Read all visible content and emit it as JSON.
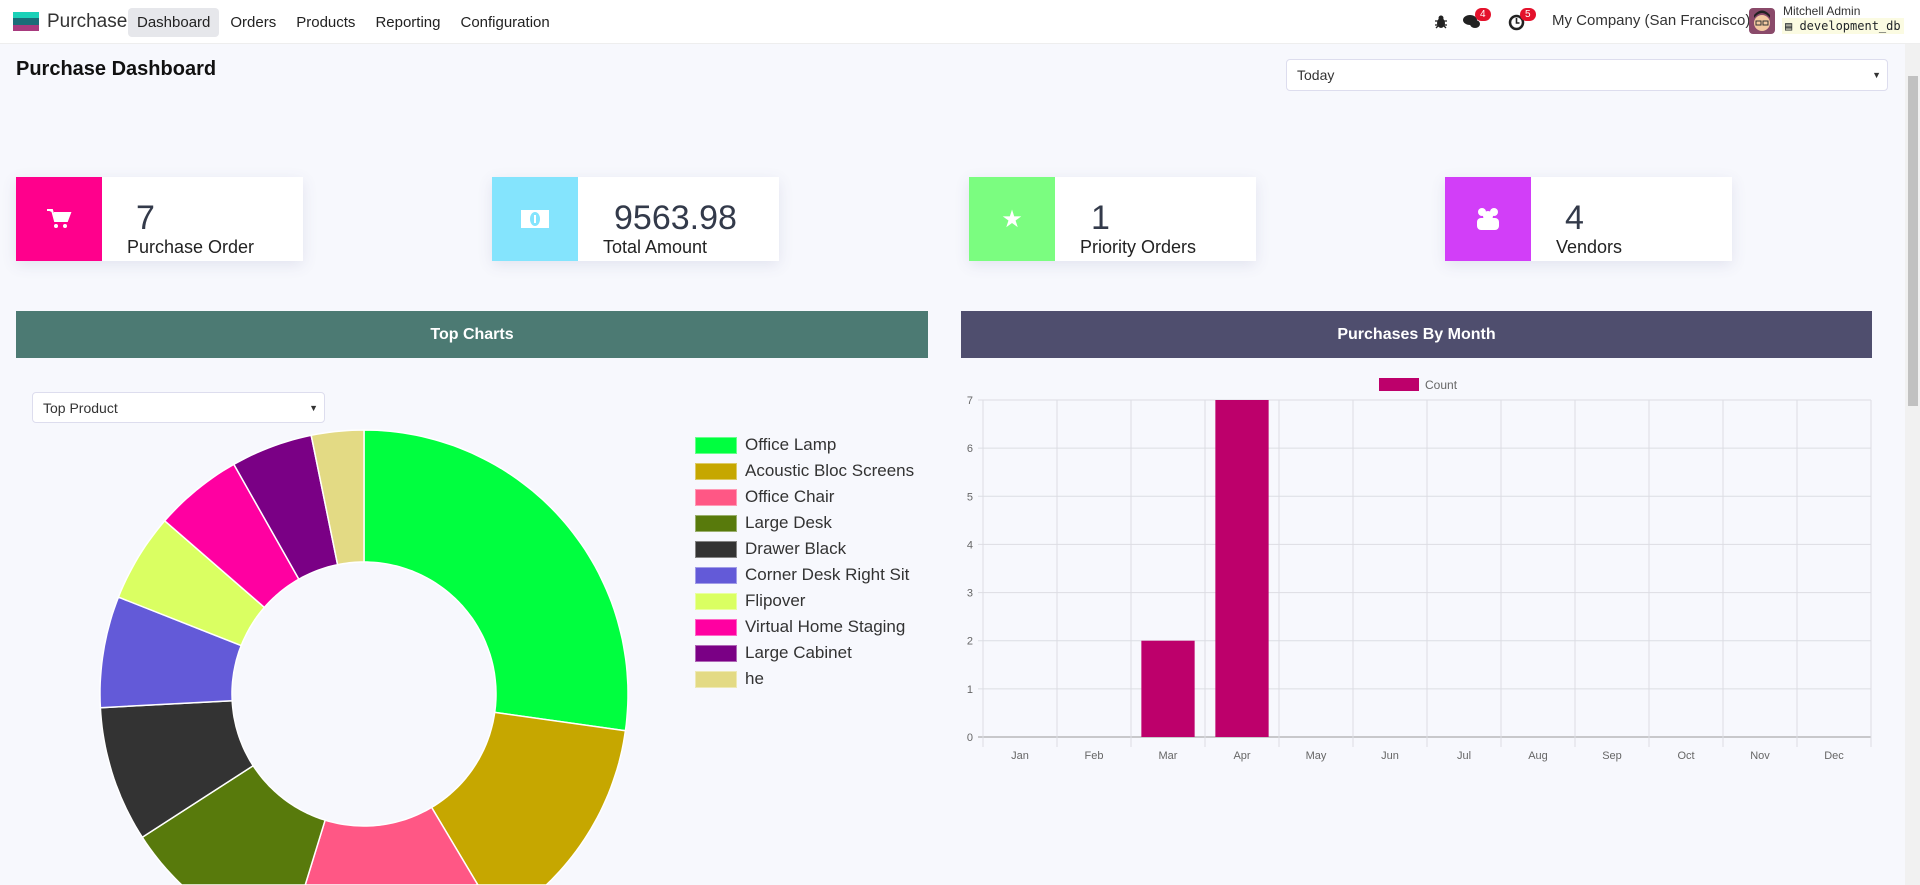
{
  "nav": {
    "app": "Purchase",
    "menu": [
      "Dashboard",
      "Orders",
      "Products",
      "Reporting",
      "Configuration"
    ],
    "active": "Dashboard",
    "messages_count": "4",
    "activities_count": "5",
    "company": "My Company (San Francisco)",
    "user": "Mitchell Admin",
    "db": "development_db"
  },
  "page": {
    "title": "Purchase Dashboard",
    "period": "Today"
  },
  "cards": [
    {
      "value": "7",
      "label": "Purchase Order",
      "icon": "cart-icon",
      "color": "#ff008c"
    },
    {
      "value": "9563.98",
      "label": "Total Amount",
      "icon": "money-icon",
      "color": "#84e4fd"
    },
    {
      "value": "1",
      "label": "Priority Orders",
      "icon": "star-icon",
      "color": "#7bfd80"
    },
    {
      "value": "4",
      "label": "Vendors",
      "icon": "users-icon",
      "color": "#d23ef8"
    }
  ],
  "left_panel": {
    "title": "Top Charts",
    "header_color": "#4c7a73",
    "selector": "Top Product"
  },
  "right_panel": {
    "title": "Purchases By Month",
    "header_color": "#4f4e6e"
  },
  "chart_data": [
    {
      "type": "pie",
      "donut": true,
      "categories": [
        "Office Lamp",
        "Acoustic Bloc Screens",
        "Office Chair",
        "Large Desk",
        "Drawer Black",
        "Corner Desk Right Sit",
        "Flipover",
        "Virtual Home Staging",
        "Large Cabinet",
        "he"
      ],
      "values": [
        27.2,
        14.2,
        13.3,
        11.1,
        8.3,
        6.8,
        5.4,
        5.4,
        5.0,
        3.2
      ],
      "colors": [
        "#00ff3f",
        "#c6a700",
        "#ff5785",
        "#587a0c",
        "#333333",
        "#635ad8",
        "#daff62",
        "#ff00a1",
        "#7a0085",
        "#e3da84"
      ],
      "legend": "right"
    },
    {
      "type": "bar",
      "categories": [
        "Jan",
        "Feb",
        "Mar",
        "Apr",
        "May",
        "Jun",
        "Jul",
        "Aug",
        "Sep",
        "Oct",
        "Nov",
        "Dec"
      ],
      "series": [
        {
          "name": "Count",
          "values": [
            0,
            0,
            2,
            7,
            0,
            0,
            0,
            0,
            0,
            0,
            0,
            0
          ],
          "color": "#bd006b"
        }
      ],
      "ylim": [
        0,
        7
      ],
      "yticks": [
        0,
        1,
        2,
        3,
        4,
        5,
        6,
        7
      ],
      "grid": true,
      "legend": "top"
    }
  ]
}
